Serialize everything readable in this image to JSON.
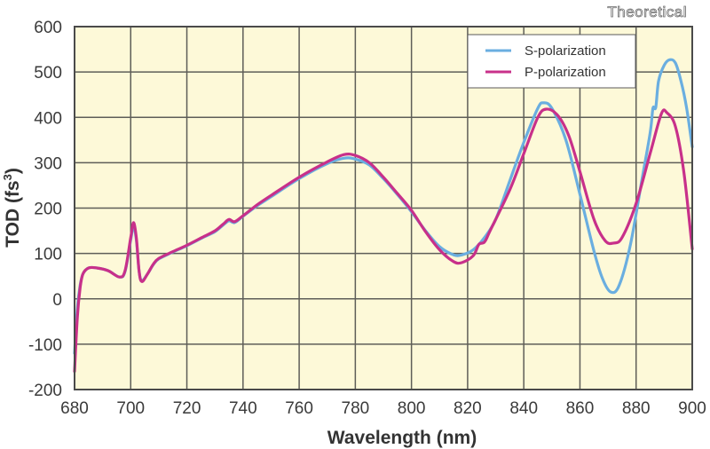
{
  "chart_data": {
    "type": "line",
    "title": "",
    "annotation": "Theoretical",
    "xlabel": "Wavelength (nm)",
    "ylabel": "TOD (fs³)",
    "ylabel_main": "TOD (fs",
    "ylabel_sup": "3",
    "ylabel_end": ")",
    "xlim": [
      680,
      900
    ],
    "ylim": [
      -200,
      600
    ],
    "xticks": [
      680,
      700,
      720,
      740,
      760,
      780,
      800,
      820,
      840,
      860,
      880,
      900
    ],
    "yticks": [
      600,
      500,
      400,
      300,
      200,
      100,
      0,
      -100,
      -200
    ],
    "xtick_labels": [
      "680",
      "700",
      "720",
      "740",
      "760",
      "780",
      "800",
      "820",
      "840",
      "860",
      "880",
      "900"
    ],
    "ytick_labels": [
      "600",
      "500",
      "400",
      "300",
      "200",
      "100",
      "0",
      "-100",
      "-200"
    ],
    "grid": true,
    "background": "#fdf9d8",
    "legend_position": "top-right",
    "series": [
      {
        "name": "S-polarization",
        "color": "#6aaee0",
        "x": [
          680,
          681,
          682,
          683,
          685,
          688,
          692,
          696,
          698,
          700,
          701,
          702,
          703,
          704,
          706,
          708,
          710,
          715,
          720,
          725,
          730,
          733,
          735,
          737,
          740,
          745,
          750,
          760,
          770,
          776,
          780,
          785,
          790,
          795,
          800,
          805,
          810,
          815,
          818,
          822,
          826,
          830,
          835,
          840,
          845,
          847,
          850,
          855,
          860,
          865,
          868,
          871,
          874,
          878,
          882,
          885,
          886,
          887,
          888,
          890,
          892,
          894,
          896,
          898,
          900
        ],
        "y": [
          -120,
          -20,
          30,
          55,
          68,
          68,
          62,
          48,
          60,
          130,
          160,
          130,
          60,
          40,
          55,
          75,
          88,
          103,
          117,
          133,
          148,
          163,
          172,
          168,
          182,
          205,
          225,
          265,
          298,
          310,
          308,
          295,
          265,
          230,
          192,
          150,
          115,
          97,
          97,
          108,
          135,
          175,
          260,
          345,
          420,
          432,
          420,
          350,
          230,
          105,
          45,
          15,
          30,
          120,
          260,
          365,
          420,
          422,
          480,
          515,
          527,
          520,
          480,
          420,
          335
        ]
      },
      {
        "name": "P-polarization",
        "color": "#c8308a",
        "x": [
          680,
          681,
          682,
          683,
          685,
          688,
          692,
          696,
          698,
          700,
          701,
          702,
          703,
          704,
          706,
          708,
          710,
          715,
          720,
          725,
          730,
          733,
          735,
          737,
          740,
          745,
          750,
          760,
          770,
          776,
          780,
          785,
          790,
          795,
          800,
          805,
          810,
          815,
          818,
          822,
          824,
          826,
          828,
          835,
          840,
          845,
          848,
          852,
          856,
          860,
          865,
          869,
          872,
          875,
          880,
          885,
          889,
          891,
          894,
          897,
          900
        ],
        "y": [
          -160,
          -40,
          25,
          55,
          68,
          68,
          62,
          48,
          62,
          135,
          168,
          135,
          60,
          38,
          55,
          76,
          89,
          104,
          118,
          134,
          150,
          165,
          175,
          170,
          183,
          207,
          228,
          268,
          302,
          318,
          316,
          300,
          268,
          232,
          195,
          148,
          108,
          82,
          80,
          95,
          120,
          125,
          150,
          240,
          320,
          400,
          418,
          405,
          360,
          280,
          175,
          128,
          123,
          135,
          210,
          320,
          408,
          410,
          380,
          280,
          110
        ]
      }
    ]
  }
}
